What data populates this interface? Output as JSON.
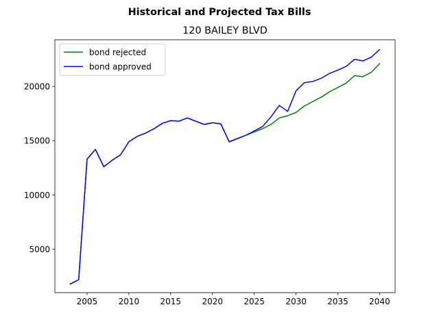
{
  "chart_data": {
    "type": "line",
    "suptitle": "Historical and Projected Tax Bills",
    "title": "120 BAILEY BLVD",
    "xlabel": "",
    "ylabel": "",
    "xlim": [
      2001.15,
      2041.85
    ],
    "ylim": [
      1000,
      24300
    ],
    "xticks": [
      2005,
      2010,
      2015,
      2020,
      2025,
      2030,
      2035,
      2040
    ],
    "yticks": [
      5000,
      10000,
      15000,
      20000
    ],
    "x": [
      2003,
      2004,
      2005,
      2006,
      2007,
      2008,
      2009,
      2010,
      2011,
      2012,
      2013,
      2014,
      2015,
      2016,
      2017,
      2018,
      2019,
      2020,
      2021,
      2022,
      2023,
      2024,
      2025,
      2026,
      2027,
      2028,
      2029,
      2030,
      2031,
      2032,
      2033,
      2034,
      2035,
      2036,
      2037,
      2038,
      2039,
      2040
    ],
    "legend_position": "upper-left",
    "grid": false,
    "series": [
      {
        "name": "bond rejected",
        "color": "#008000",
        "values": [
          1800,
          2200,
          13300,
          14200,
          12600,
          13200,
          13700,
          14900,
          15400,
          15700,
          16100,
          16600,
          16850,
          16800,
          17100,
          16800,
          16500,
          16650,
          16550,
          14900,
          15200,
          15500,
          15800,
          16100,
          16500,
          17100,
          17300,
          17600,
          18200,
          18600,
          19000,
          19500,
          19900,
          20300,
          21000,
          20900,
          21300,
          22100
        ]
      },
      {
        "name": "bond approved",
        "color": "#0000ff",
        "values": [
          1800,
          2200,
          13300,
          14200,
          12600,
          13200,
          13700,
          14900,
          15400,
          15700,
          16100,
          16600,
          16850,
          16800,
          17100,
          16800,
          16500,
          16650,
          16550,
          14900,
          15200,
          15500,
          15900,
          16300,
          17200,
          18250,
          17700,
          19600,
          20350,
          20450,
          20750,
          21200,
          21500,
          21850,
          22500,
          22350,
          22700,
          23400
        ]
      }
    ]
  }
}
